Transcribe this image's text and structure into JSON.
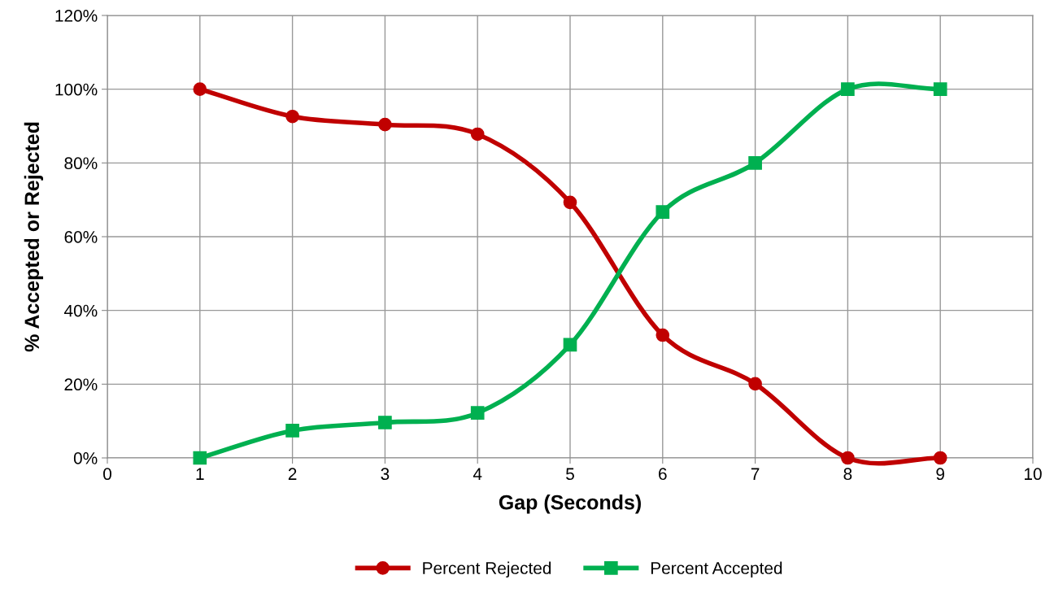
{
  "chart_data": {
    "type": "line",
    "xlabel": "Gap (Seconds)",
    "ylabel": "% Accepted or Rejected",
    "x": [
      1,
      2,
      3,
      4,
      5,
      6,
      7,
      8,
      9
    ],
    "series": [
      {
        "name": "Percent Rejected",
        "color": "#c00000",
        "marker": "circle",
        "values": [
          100,
          92.6,
          90.4,
          87.8,
          69.3,
          33.3,
          20.1,
          0,
          0
        ]
      },
      {
        "name": "Percent Accepted",
        "color": "#00b050",
        "marker": "square",
        "values": [
          0,
          7.4,
          9.6,
          12.2,
          30.7,
          66.7,
          80,
          100,
          100
        ]
      }
    ],
    "xlim": [
      0,
      10
    ],
    "xticks": [
      0,
      1,
      2,
      3,
      4,
      5,
      6,
      7,
      8,
      9,
      10
    ],
    "ylim": [
      0,
      120
    ],
    "yticks": [
      {
        "value": 0,
        "label": "0%"
      },
      {
        "value": 20,
        "label": "20%"
      },
      {
        "value": 40,
        "label": "40%"
      },
      {
        "value": 60,
        "label": "60%"
      },
      {
        "value": 80,
        "label": "80%"
      },
      {
        "value": 100,
        "label": "100%"
      },
      {
        "value": 120,
        "label": "120%"
      }
    ],
    "grid": true,
    "legend": "bottom",
    "line_style": "solid"
  }
}
